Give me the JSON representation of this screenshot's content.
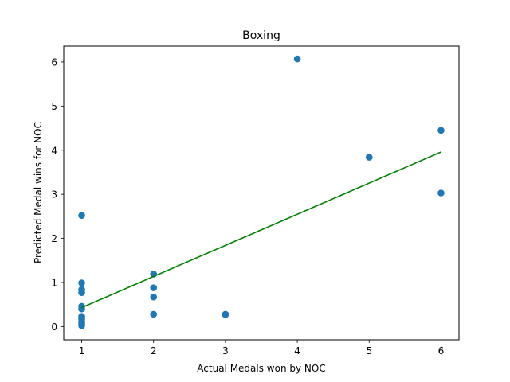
{
  "chart_data": {
    "type": "scatter",
    "title": "Boxing",
    "xlabel": "Actual Medals won by NOC",
    "ylabel": "Predicted Medal wins for NOC",
    "xlim": [
      0.75,
      6.25
    ],
    "ylim": [
      -0.3,
      6.36
    ],
    "xticks": [
      1,
      2,
      3,
      4,
      5,
      6
    ],
    "yticks": [
      0,
      1,
      2,
      3,
      4,
      5,
      6
    ],
    "grid": false,
    "points": [
      {
        "x": 1,
        "y": 2.52
      },
      {
        "x": 1,
        "y": 0.99
      },
      {
        "x": 1,
        "y": 0.84
      },
      {
        "x": 1,
        "y": 0.77
      },
      {
        "x": 1,
        "y": 0.46
      },
      {
        "x": 1,
        "y": 0.4
      },
      {
        "x": 1,
        "y": 0.23
      },
      {
        "x": 1,
        "y": 0.17
      },
      {
        "x": 1,
        "y": 0.12
      },
      {
        "x": 1,
        "y": 0.07
      },
      {
        "x": 1,
        "y": 0.02
      },
      {
        "x": 2,
        "y": 1.19
      },
      {
        "x": 2,
        "y": 0.88
      },
      {
        "x": 2,
        "y": 0.67
      },
      {
        "x": 2,
        "y": 0.28
      },
      {
        "x": 3,
        "y": 0.28
      },
      {
        "x": 3,
        "y": 0.27
      },
      {
        "x": 4,
        "y": 6.07
      },
      {
        "x": 5,
        "y": 3.84
      },
      {
        "x": 6,
        "y": 4.45
      },
      {
        "x": 6,
        "y": 3.03
      }
    ],
    "fit_line": {
      "x": [
        1,
        6
      ],
      "y": [
        0.43,
        3.96
      ]
    },
    "colors": {
      "points": "#1f77b4",
      "fit_line": "#008000"
    }
  }
}
